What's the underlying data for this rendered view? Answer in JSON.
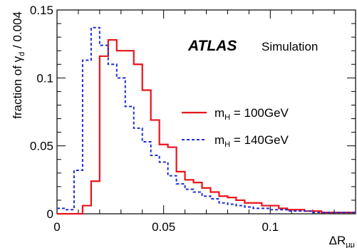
{
  "chart_data": {
    "type": "line",
    "xlabel_main": "ΔR",
    "xlabel_sub": "μμ",
    "ylabel_main": "fraction of γ",
    "ylabel_sub": "d",
    "ylabel_tail": " / 0.004",
    "xlim": [
      0,
      0.14
    ],
    "ylim": [
      0,
      0.15
    ],
    "x_ticks": [
      0,
      0.05,
      0.1
    ],
    "x_tick_labels": [
      "0",
      "0.05",
      "0.1"
    ],
    "y_ticks": [
      0,
      0.05,
      0.1,
      0.15
    ],
    "y_tick_labels": [
      "0",
      "0.05",
      "0.1",
      "0.15"
    ],
    "bin_width": 0.004,
    "bin_start": 0,
    "experiment": "ATLAS",
    "experiment_note": "Simulation",
    "legend_position": "right",
    "series": [
      {
        "name_main": "m",
        "name_sub": "H",
        "name_tail": " = 100GeV",
        "color": "#e8141b",
        "dash": "solid",
        "values": [
          0,
          0,
          0,
          0.006,
          0.024,
          0.116,
          0.128,
          0.12,
          0.12,
          0.11,
          0.091,
          0.069,
          0.051,
          0.049,
          0.031,
          0.025,
          0.023,
          0.019,
          0.016,
          0.013,
          0.012,
          0.01,
          0.008,
          0.008,
          0.006,
          0.006,
          0.004,
          0.003,
          0.003,
          0.002,
          0.002,
          0.001,
          0.001,
          0.001,
          0.001
        ]
      },
      {
        "name_main": "m",
        "name_sub": "H",
        "name_tail": " = 140GeV",
        "color": "#1f2ed6",
        "dash": "dashed",
        "values": [
          0.004,
          0.003,
          0.032,
          0.113,
          0.137,
          0.124,
          0.11,
          0.1,
          0.079,
          0.063,
          0.053,
          0.043,
          0.038,
          0.028,
          0.022,
          0.018,
          0.016,
          0.013,
          0.011,
          0.008,
          0.007,
          0.006,
          0.005,
          0.004,
          0.004,
          0.003,
          0.003,
          0.002,
          0.002,
          0.002,
          0.001,
          0.001,
          0.001,
          0.001,
          0.001
        ]
      }
    ]
  }
}
